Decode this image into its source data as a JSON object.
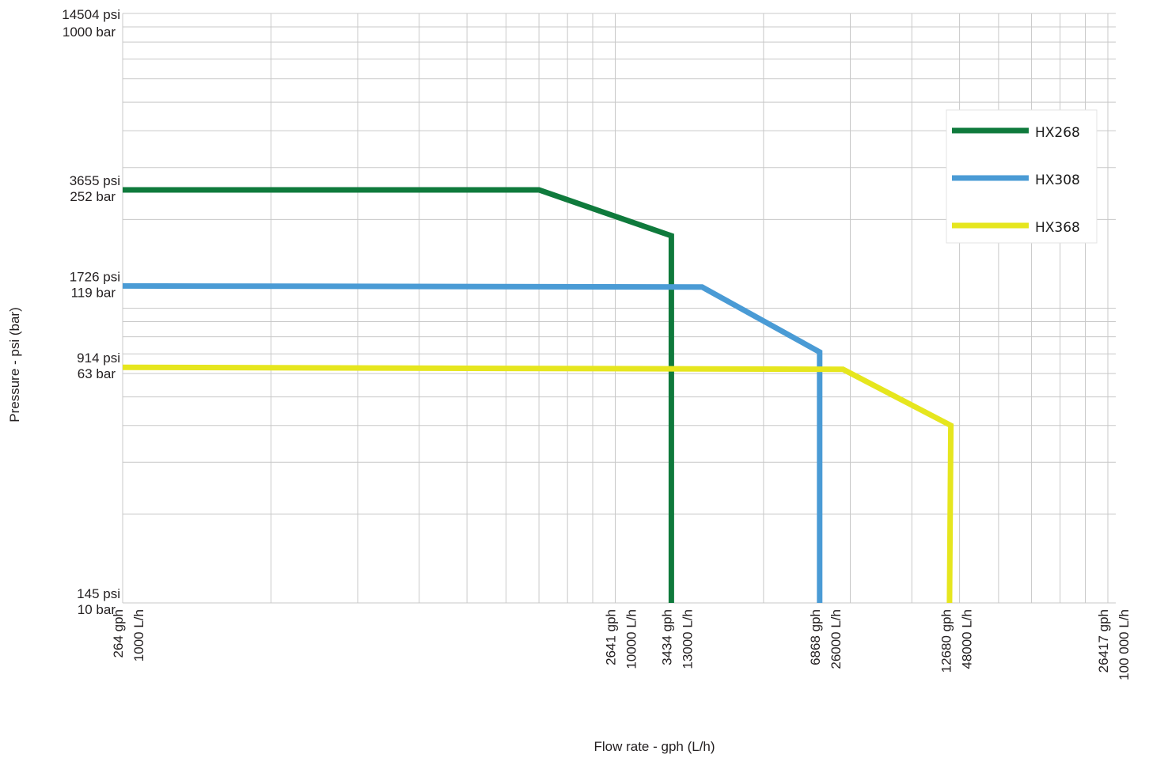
{
  "chart_data": {
    "type": "line",
    "x_scale": "log",
    "y_scale": "log",
    "xlim": [
      1000,
      100000
    ],
    "ylim": [
      10,
      1000
    ],
    "xlabel": "Flow rate - gph (L/h)",
    "ylabel": "Pressure - psi (bar)",
    "grid": true,
    "legend_position": "top-right",
    "x_ticks": [
      {
        "value": 1000,
        "line1": "264 gph",
        "line2": "1000 L/h"
      },
      {
        "value": 10000,
        "line1": "2641 gph",
        "line2": "10000 L/h"
      },
      {
        "value": 13000,
        "line1": "3434 gph",
        "line2": "13000 L/h"
      },
      {
        "value": 26000,
        "line1": "6868 gph",
        "line2": "26000 L/h"
      },
      {
        "value": 48000,
        "line1": "12680 gph",
        "line2": "48000 L/h"
      },
      {
        "value": 100000,
        "line1": "26417 gph",
        "line2": "100 000 L/h"
      }
    ],
    "y_ticks": [
      {
        "value": 1000,
        "line1": "14504 psi",
        "line2": "1000 bar"
      },
      {
        "value": 252,
        "line1": "3655 psi",
        "line2": "252 bar"
      },
      {
        "value": 119,
        "line1": "1726 psi",
        "line2": "119 bar"
      },
      {
        "value": 63,
        "line1": "914 psi",
        "line2": "63 bar"
      },
      {
        "value": 10,
        "line1": "145 psi",
        "line2": "10 bar"
      }
    ],
    "series": [
      {
        "name": "HX268",
        "color": "#0f7a3c",
        "points": [
          [
            1000,
            252
          ],
          [
            7000,
            252
          ],
          [
            13000,
            176
          ],
          [
            13000,
            10
          ]
        ]
      },
      {
        "name": "HX308",
        "color": "#4a9bd5",
        "points": [
          [
            1000,
            119
          ],
          [
            15000,
            118
          ],
          [
            26000,
            71
          ],
          [
            26000,
            10
          ]
        ]
      },
      {
        "name": "HX368",
        "color": "#e6e61e",
        "points": [
          [
            1000,
            63
          ],
          [
            29000,
            62
          ],
          [
            48000,
            40
          ],
          [
            47700,
            10
          ]
        ]
      }
    ]
  }
}
